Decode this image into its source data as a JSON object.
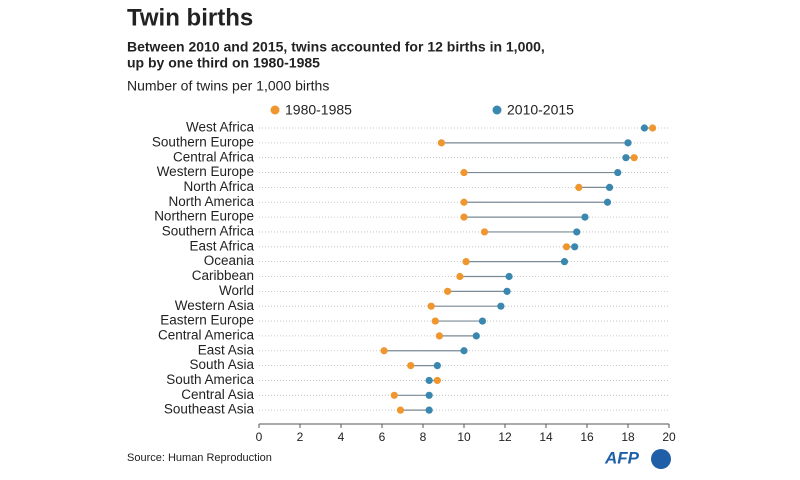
{
  "chart_data": {
    "type": "dumbbell",
    "title": "Twin births",
    "subtitle": [
      "Between 2010 and 2015, twins accounted for 12 births in 1,000,",
      "up by one third on 1980-1985"
    ],
    "axis_label": "Number of twins per 1,000 births",
    "source": "Source: Human Reproduction",
    "logo": "AFP",
    "categories": [
      "West Africa",
      "Southern Europe",
      "Central Africa",
      "Western Europe",
      "North Africa",
      "North America",
      "Northern Europe",
      "Southern Africa",
      "East Africa",
      "Oceania",
      "Caribbean",
      "World",
      "Western Asia",
      "Eastern Europe",
      "Central America",
      "East Asia",
      "South Asia",
      "South America",
      "Central Asia",
      "Southeast Asia"
    ],
    "series": [
      {
        "name": "1980-1985",
        "color": "#f0962e",
        "values": [
          19.2,
          8.9,
          18.3,
          10.0,
          15.6,
          10.0,
          10.0,
          11.0,
          15.0,
          10.1,
          9.8,
          9.2,
          8.4,
          8.6,
          8.8,
          6.1,
          7.4,
          8.7,
          6.6,
          6.9
        ]
      },
      {
        "name": "2010-2015",
        "color": "#3a87b0",
        "values": [
          18.8,
          18.0,
          17.9,
          17.5,
          17.1,
          17.0,
          15.9,
          15.5,
          15.4,
          14.9,
          12.2,
          12.1,
          11.8,
          10.9,
          10.6,
          10.0,
          8.7,
          8.3,
          8.3,
          8.3
        ]
      }
    ],
    "xlim": [
      0,
      20
    ],
    "xticks": [
      0,
      2,
      4,
      6,
      8,
      10,
      12,
      14,
      16,
      18,
      20
    ],
    "grid": true
  }
}
